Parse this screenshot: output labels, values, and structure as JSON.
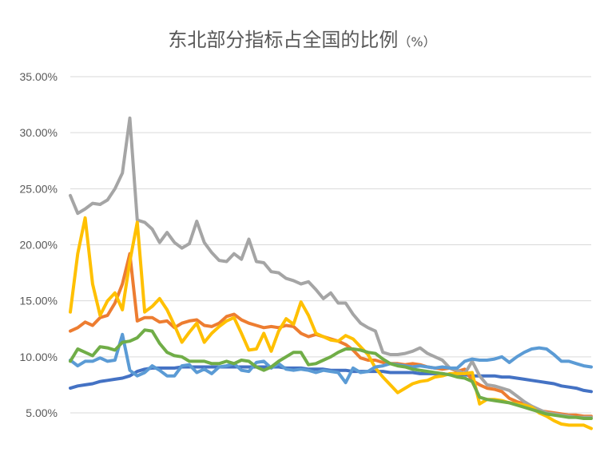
{
  "chart_data": {
    "type": "line",
    "title": "东北部分指标占全国的比例",
    "title_unit": "（%）",
    "xlabel": "",
    "ylabel": "",
    "ylim": [
      0.05,
      0.35
    ],
    "y_ticks": [
      0.05,
      0.1,
      0.15,
      0.2,
      0.25,
      0.3,
      0.35
    ],
    "y_tick_labels": [
      "5.00%",
      "10.00%",
      "15.00%",
      "20.00%",
      "25.00%",
      "30.00%",
      "35.00%"
    ],
    "grid": true,
    "legend": "none",
    "x": [
      0,
      1,
      2,
      3,
      4,
      5,
      6,
      7,
      8,
      9,
      10,
      11,
      12,
      13,
      14,
      15,
      16,
      17,
      18,
      19,
      20,
      21,
      22,
      23,
      24,
      25,
      26,
      27,
      28,
      29,
      30,
      31,
      32,
      33,
      34,
      35,
      36,
      37,
      38,
      39,
      40,
      41,
      42,
      43,
      44,
      45,
      46,
      47,
      48,
      49,
      50,
      51,
      52,
      53,
      54,
      55,
      56,
      57,
      58,
      59,
      60,
      61,
      62,
      63,
      64,
      65,
      66,
      67,
      68,
      69,
      70
    ],
    "series": [
      {
        "color": "#4472C4",
        "values": [
          0.072,
          0.074,
          0.075,
          0.076,
          0.078,
          0.079,
          0.08,
          0.081,
          0.083,
          0.087,
          0.089,
          0.09,
          0.09,
          0.09,
          0.09,
          0.091,
          0.091,
          0.091,
          0.091,
          0.091,
          0.091,
          0.091,
          0.091,
          0.091,
          0.091,
          0.091,
          0.091,
          0.091,
          0.091,
          0.09,
          0.09,
          0.09,
          0.089,
          0.089,
          0.089,
          0.088,
          0.088,
          0.088,
          0.087,
          0.087,
          0.087,
          0.087,
          0.087,
          0.086,
          0.086,
          0.086,
          0.086,
          0.085,
          0.085,
          0.085,
          0.085,
          0.084,
          0.084,
          0.084,
          0.083,
          0.083,
          0.083,
          0.083,
          0.082,
          0.082,
          0.081,
          0.08,
          0.079,
          0.078,
          0.077,
          0.076,
          0.074,
          0.073,
          0.072,
          0.07,
          0.069
        ]
      },
      {
        "color": "#ED7D31",
        "values": [
          0.123,
          0.126,
          0.131,
          0.128,
          0.135,
          0.137,
          0.148,
          0.165,
          0.192,
          0.132,
          0.135,
          0.135,
          0.131,
          0.132,
          0.126,
          0.13,
          0.132,
          0.133,
          0.128,
          0.127,
          0.13,
          0.136,
          0.138,
          0.133,
          0.13,
          0.128,
          0.126,
          0.127,
          0.126,
          0.128,
          0.127,
          0.121,
          0.118,
          0.12,
          0.118,
          0.116,
          0.114,
          0.111,
          0.106,
          0.099,
          0.097,
          0.097,
          0.095,
          0.094,
          0.094,
          0.093,
          0.094,
          0.093,
          0.091,
          0.09,
          0.089,
          0.09,
          0.087,
          0.089,
          0.079,
          0.075,
          0.072,
          0.071,
          0.069,
          0.063,
          0.06,
          0.058,
          0.055,
          0.052,
          0.051,
          0.05,
          0.049,
          0.048,
          0.048,
          0.047,
          0.047
        ]
      },
      {
        "color": "#A5A5A5",
        "values": [
          0.244,
          0.228,
          0.232,
          0.237,
          0.236,
          0.24,
          0.25,
          0.264,
          0.313,
          0.222,
          0.22,
          0.214,
          0.202,
          0.211,
          0.202,
          0.197,
          0.201,
          0.221,
          0.202,
          0.193,
          0.186,
          0.185,
          0.192,
          0.187,
          0.205,
          0.185,
          0.184,
          0.176,
          0.175,
          0.17,
          0.168,
          0.165,
          0.167,
          0.16,
          0.152,
          0.157,
          0.148,
          0.148,
          0.138,
          0.13,
          0.126,
          0.123,
          0.104,
          0.102,
          0.102,
          0.103,
          0.105,
          0.108,
          0.103,
          0.1,
          0.097,
          0.09,
          0.088,
          0.085,
          0.096,
          0.083,
          0.075,
          0.074,
          0.072,
          0.07,
          0.065,
          0.06,
          0.056,
          0.053,
          0.05,
          0.049,
          0.048,
          0.047,
          0.046,
          0.046,
          0.046
        ]
      },
      {
        "color": "#FFC000",
        "values": [
          0.14,
          0.192,
          0.224,
          0.165,
          0.137,
          0.15,
          0.157,
          0.142,
          0.185,
          0.22,
          0.14,
          0.145,
          0.152,
          0.142,
          0.128,
          0.113,
          0.122,
          0.13,
          0.113,
          0.121,
          0.127,
          0.132,
          0.135,
          0.121,
          0.106,
          0.107,
          0.121,
          0.105,
          0.123,
          0.134,
          0.129,
          0.149,
          0.137,
          0.121,
          0.118,
          0.115,
          0.114,
          0.119,
          0.116,
          0.109,
          0.102,
          0.09,
          0.082,
          0.075,
          0.068,
          0.072,
          0.076,
          0.078,
          0.079,
          0.082,
          0.083,
          0.085,
          0.085,
          0.085,
          0.086,
          0.058,
          0.062,
          0.062,
          0.061,
          0.059,
          0.058,
          0.057,
          0.055,
          0.05,
          0.047,
          0.043,
          0.04,
          0.039,
          0.039,
          0.039,
          0.036
        ]
      },
      {
        "color": "#5B9BD5",
        "values": [
          0.097,
          0.092,
          0.096,
          0.096,
          0.099,
          0.096,
          0.097,
          0.12,
          0.088,
          0.083,
          0.086,
          0.092,
          0.088,
          0.083,
          0.083,
          0.092,
          0.093,
          0.086,
          0.089,
          0.085,
          0.091,
          0.092,
          0.094,
          0.088,
          0.087,
          0.095,
          0.096,
          0.09,
          0.094,
          0.089,
          0.088,
          0.089,
          0.088,
          0.086,
          0.088,
          0.087,
          0.086,
          0.077,
          0.09,
          0.086,
          0.087,
          0.091,
          0.092,
          0.094,
          0.093,
          0.092,
          0.091,
          0.092,
          0.091,
          0.09,
          0.091,
          0.09,
          0.09,
          0.096,
          0.098,
          0.097,
          0.097,
          0.098,
          0.1,
          0.095,
          0.1,
          0.104,
          0.107,
          0.108,
          0.107,
          0.102,
          0.096,
          0.096,
          0.094,
          0.092,
          0.091
        ]
      },
      {
        "color": "#70AD47",
        "values": [
          0.096,
          0.107,
          0.104,
          0.101,
          0.109,
          0.108,
          0.106,
          0.113,
          0.114,
          0.117,
          0.124,
          0.123,
          0.112,
          0.104,
          0.101,
          0.1,
          0.096,
          0.096,
          0.096,
          0.094,
          0.094,
          0.096,
          0.094,
          0.097,
          0.096,
          0.091,
          0.088,
          0.091,
          0.096,
          0.1,
          0.104,
          0.104,
          0.093,
          0.094,
          0.097,
          0.1,
          0.104,
          0.107,
          0.107,
          0.106,
          0.104,
          0.103,
          0.098,
          0.094,
          0.092,
          0.091,
          0.089,
          0.088,
          0.087,
          0.086,
          0.085,
          0.084,
          0.082,
          0.081,
          0.078,
          0.064,
          0.062,
          0.061,
          0.06,
          0.059,
          0.057,
          0.055,
          0.053,
          0.051,
          0.049,
          0.048,
          0.047,
          0.046,
          0.046,
          0.045,
          0.045
        ]
      }
    ]
  }
}
